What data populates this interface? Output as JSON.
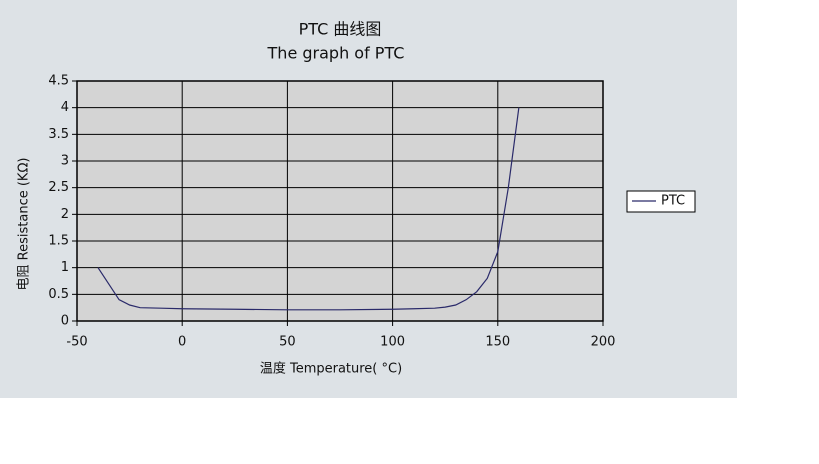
{
  "chart_data": {
    "type": "line",
    "title": "PTC 曲线图",
    "subtitle": "The graph of PTC",
    "x_label": "温度  Temperature( °C)",
    "y_label": "电阻  Resistance (KΩ)",
    "x": [
      -40,
      -35,
      -30,
      -25,
      -20,
      -10,
      0,
      25,
      50,
      75,
      100,
      110,
      120,
      125,
      130,
      135,
      140,
      145,
      150,
      155,
      160
    ],
    "series": [
      {
        "name": "PTC",
        "color": "#2a2a6a",
        "values": [
          1.0,
          0.7,
          0.4,
          0.3,
          0.25,
          0.24,
          0.23,
          0.22,
          0.21,
          0.21,
          0.22,
          0.23,
          0.24,
          0.26,
          0.3,
          0.4,
          0.55,
          0.8,
          1.3,
          2.5,
          4.0
        ]
      }
    ],
    "xlim": [
      -50,
      200
    ],
    "xticks": [
      -50,
      0,
      50,
      100,
      150,
      200
    ],
    "ylim": [
      0,
      4.5
    ],
    "yticks": [
      0,
      0.5,
      1,
      1.5,
      2,
      2.5,
      3,
      3.5,
      4,
      4.5
    ],
    "grid": true,
    "legend": "right"
  }
}
